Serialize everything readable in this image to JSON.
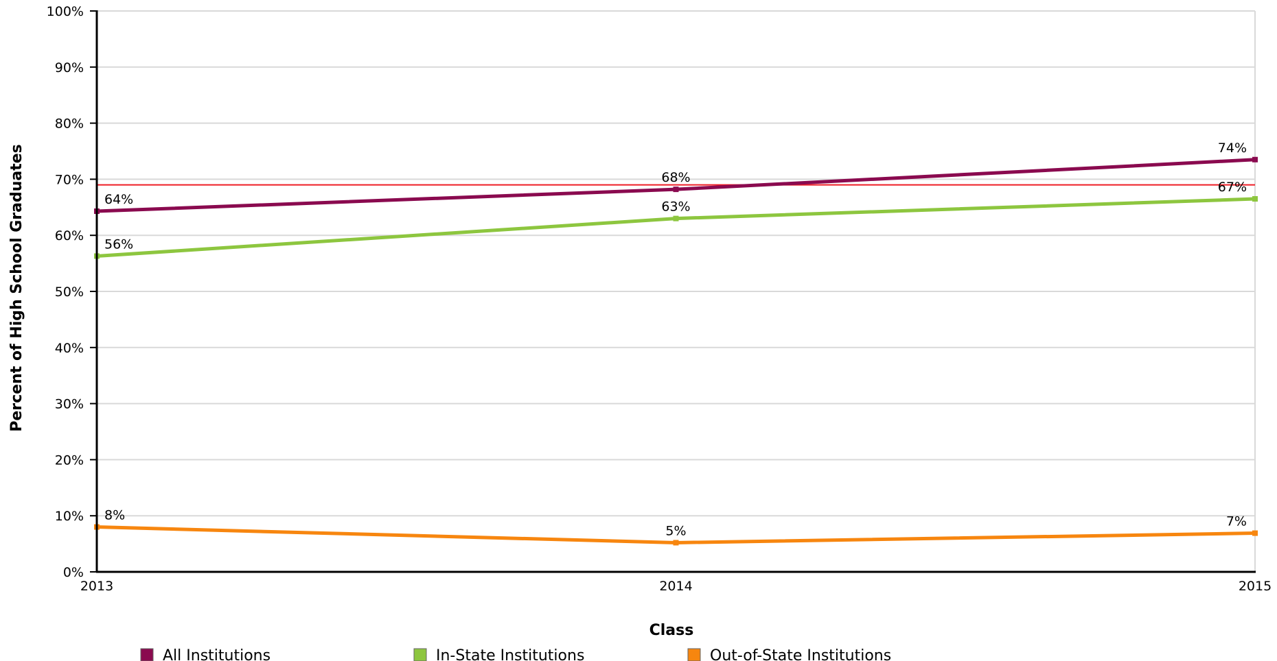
{
  "chart_data": {
    "type": "line",
    "title": "",
    "xlabel": "Class",
    "ylabel": "Percent of High School Graduates",
    "x": [
      "2013",
      "2014",
      "2015"
    ],
    "ylim": [
      0,
      100
    ],
    "y_ticks": [
      "0%",
      "10%",
      "20%",
      "30%",
      "40%",
      "50%",
      "60%",
      "70%",
      "80%",
      "90%",
      "100%"
    ],
    "grid": true,
    "legend_position": "bottom",
    "reference_line": {
      "value": 69,
      "color": "#ee1c25"
    },
    "series": [
      {
        "name": "All Institutions",
        "color": "#8a0a4f",
        "values": [
          64.3,
          68.2,
          73.5
        ],
        "labels": [
          "64%",
          "68%",
          "74%"
        ]
      },
      {
        "name": "In-State Institutions",
        "color": "#8dc63f",
        "values": [
          56.3,
          63.0,
          66.5
        ],
        "labels": [
          "56%",
          "63%",
          "67%"
        ]
      },
      {
        "name": "Out-of-State Institutions",
        "color": "#f7860f",
        "values": [
          8.0,
          5.2,
          6.9
        ],
        "labels": [
          "8%",
          "5%",
          "7%"
        ]
      }
    ]
  }
}
